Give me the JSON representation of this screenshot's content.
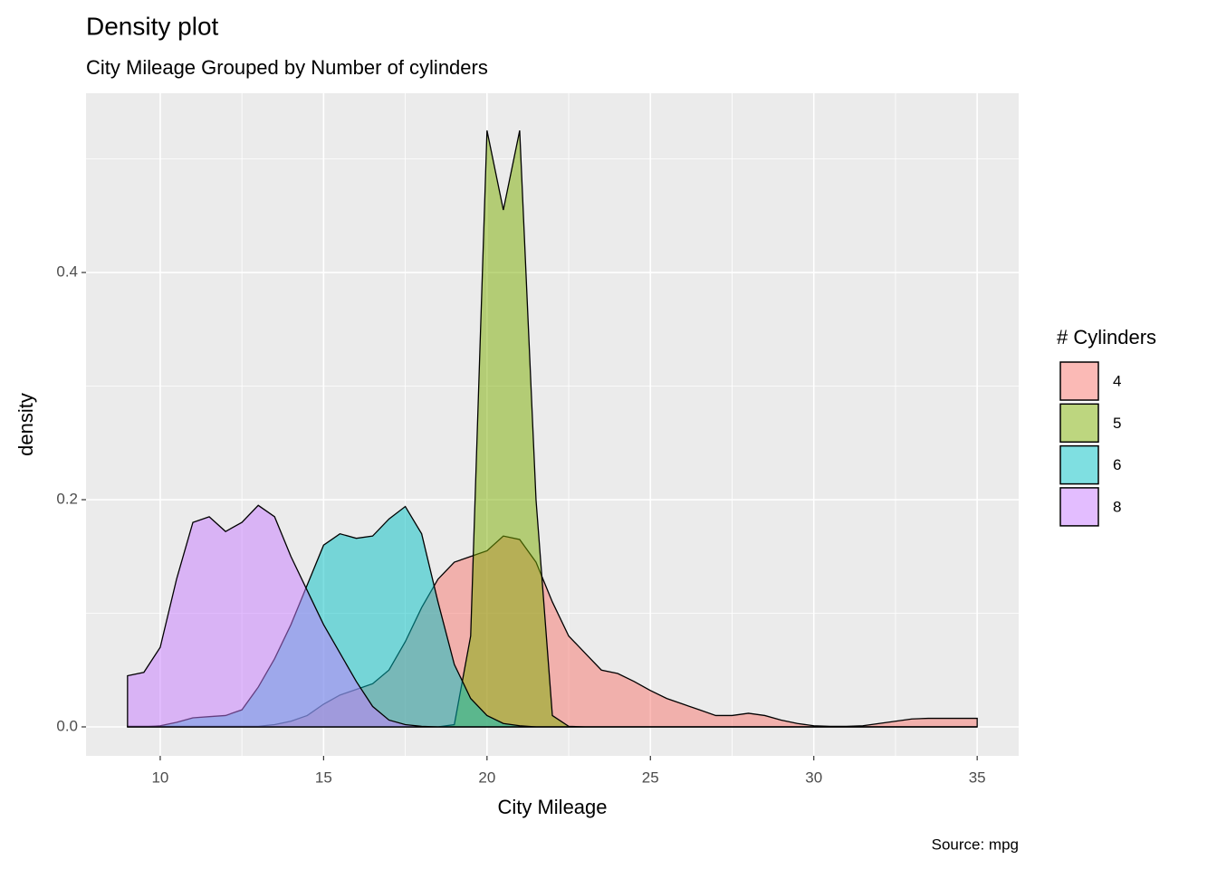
{
  "chart_data": {
    "type": "density",
    "title": "Density plot",
    "subtitle": "City Mileage Grouped by Number of cylinders",
    "caption": "Source: mpg",
    "x_label": "City Mileage",
    "y_label": "density",
    "legend_title": "# Cylinders",
    "legend_position": "right",
    "grid": true,
    "xlim": [
      7.73,
      36.27
    ],
    "ylim": [
      -0.0255,
      0.5578
    ],
    "xticks": [
      10,
      15,
      20,
      25,
      30,
      35
    ],
    "yticks": [
      {
        "value": 0,
        "label": "0.0"
      },
      {
        "value": 0.2,
        "label": "0.2"
      },
      {
        "value": 0.4,
        "label": "0.4"
      }
    ],
    "x": [
      9,
      9.5,
      10,
      10.5,
      11,
      11.5,
      12,
      12.5,
      13,
      13.5,
      14,
      14.5,
      15,
      15.5,
      16,
      16.5,
      17,
      17.5,
      18,
      18.5,
      19,
      19.5,
      20,
      20.5,
      21,
      21.5,
      22,
      22.5,
      23,
      23.5,
      24,
      24.5,
      25,
      25.5,
      26,
      26.5,
      27,
      27.5,
      28,
      28.5,
      29,
      29.5,
      30,
      30.5,
      31,
      31.5,
      32,
      32.5,
      33,
      33.5,
      34,
      34.5,
      35
    ],
    "series": [
      {
        "name": "4",
        "color": "#F8766D",
        "values": [
          0.0005,
          0.0005,
          0.0005,
          0.0005,
          0.0005,
          0.0005,
          0.0005,
          0.0005,
          0.0005,
          0.002,
          0.005,
          0.01,
          0.02,
          0.028,
          0.033,
          0.038,
          0.05,
          0.075,
          0.105,
          0.13,
          0.145,
          0.15,
          0.155,
          0.168,
          0.165,
          0.145,
          0.11,
          0.08,
          0.065,
          0.05,
          0.047,
          0.04,
          0.032,
          0.025,
          0.02,
          0.015,
          0.01,
          0.01,
          0.012,
          0.01,
          0.006,
          0.003,
          0.001,
          0.0005,
          0.0005,
          0.001,
          0.003,
          0.005,
          0.007,
          0.0075,
          0.0075,
          0.0075,
          0.0075
        ]
      },
      {
        "name": "5",
        "color": "#7CAE00",
        "values": [
          0,
          0,
          0,
          0,
          0,
          0,
          0,
          0,
          0,
          0,
          0,
          0,
          0,
          0,
          0,
          0,
          0,
          0,
          0,
          0,
          0.002,
          0.08,
          0.525,
          0.455,
          0.525,
          0.2,
          0.01,
          0.0005,
          0,
          0,
          0,
          0,
          0,
          0,
          0,
          0,
          0,
          0,
          0,
          0,
          0,
          0,
          0,
          0,
          0,
          0,
          0,
          0,
          0,
          0,
          0,
          0,
          0
        ]
      },
      {
        "name": "6",
        "color": "#00BFC4",
        "values": [
          0,
          0,
          0.001,
          0.004,
          0.008,
          0.009,
          0.01,
          0.015,
          0.035,
          0.06,
          0.09,
          0.125,
          0.16,
          0.17,
          0.166,
          0.168,
          0.183,
          0.194,
          0.17,
          0.11,
          0.055,
          0.025,
          0.01,
          0.003,
          0.001,
          0,
          0,
          0,
          0,
          0,
          0,
          0,
          0,
          0,
          0,
          0,
          0,
          0,
          0,
          0,
          0,
          0,
          0,
          0,
          0,
          0,
          0,
          0,
          0,
          0,
          0,
          0,
          0
        ]
      },
      {
        "name": "8",
        "color": "#C77CFF",
        "values": [
          0.045,
          0.048,
          0.07,
          0.13,
          0.18,
          0.185,
          0.172,
          0.18,
          0.195,
          0.185,
          0.15,
          0.12,
          0.09,
          0.065,
          0.04,
          0.018,
          0.006,
          0.002,
          0.0005,
          0,
          0,
          0,
          0,
          0,
          0,
          0,
          0,
          0,
          0,
          0,
          0,
          0,
          0,
          0,
          0,
          0,
          0,
          0,
          0,
          0,
          0,
          0,
          0,
          0,
          0,
          0,
          0,
          0,
          0,
          0,
          0,
          0,
          0
        ]
      }
    ]
  }
}
